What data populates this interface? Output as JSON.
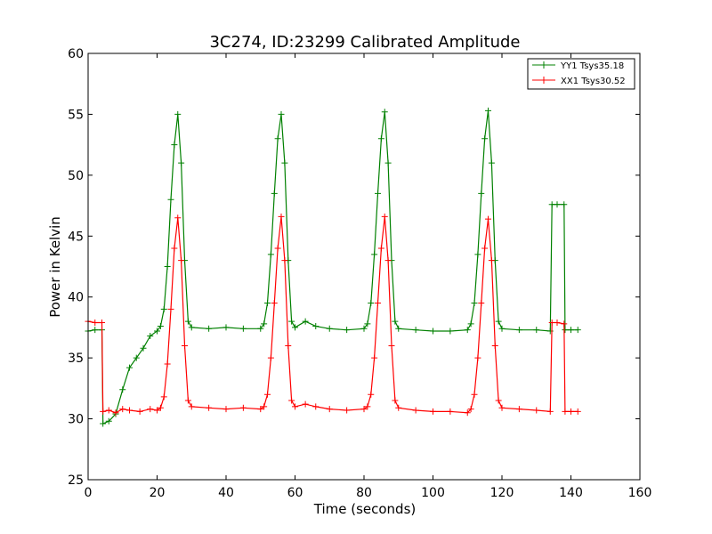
{
  "chart_data": {
    "type": "line",
    "title": "3C274, ID:23299 Calibrated Amplitude",
    "xlabel": "Time (seconds)",
    "ylabel": "Power in Kelvin",
    "xlim": [
      0,
      160
    ],
    "ylim": [
      25,
      60
    ],
    "xticks": [
      0,
      20,
      40,
      60,
      80,
      100,
      120,
      140,
      160
    ],
    "yticks": [
      25,
      30,
      35,
      40,
      45,
      50,
      55,
      60
    ],
    "legend_position": "top-right",
    "grid": false,
    "series": [
      {
        "name": "YY1 Tsys35.18",
        "color": "#008000",
        "marker": "plus",
        "points": [
          [
            0,
            37.2
          ],
          [
            2,
            37.3
          ],
          [
            4,
            37.3
          ],
          [
            4.3,
            29.6
          ],
          [
            6,
            29.8
          ],
          [
            8,
            30.4
          ],
          [
            10,
            32.4
          ],
          [
            12,
            34.2
          ],
          [
            14,
            35.0
          ],
          [
            16,
            35.8
          ],
          [
            18,
            36.8
          ],
          [
            20,
            37.2
          ],
          [
            21,
            37.6
          ],
          [
            22,
            39.0
          ],
          [
            23,
            42.5
          ],
          [
            24,
            48.0
          ],
          [
            25,
            52.5
          ],
          [
            26,
            55.0
          ],
          [
            27,
            51.0
          ],
          [
            28,
            43.0
          ],
          [
            29,
            38.0
          ],
          [
            30,
            37.5
          ],
          [
            35,
            37.4
          ],
          [
            40,
            37.5
          ],
          [
            45,
            37.4
          ],
          [
            50,
            37.4
          ],
          [
            51,
            37.8
          ],
          [
            52,
            39.5
          ],
          [
            53,
            43.5
          ],
          [
            54,
            48.5
          ],
          [
            55,
            53.0
          ],
          [
            56,
            55.0
          ],
          [
            57,
            51.0
          ],
          [
            58,
            43.0
          ],
          [
            59,
            38.0
          ],
          [
            60,
            37.5
          ],
          [
            63,
            38.0
          ],
          [
            66,
            37.6
          ],
          [
            70,
            37.4
          ],
          [
            75,
            37.3
          ],
          [
            80,
            37.4
          ],
          [
            81,
            37.8
          ],
          [
            82,
            39.5
          ],
          [
            83,
            43.5
          ],
          [
            84,
            48.5
          ],
          [
            85,
            53.0
          ],
          [
            86,
            55.2
          ],
          [
            87,
            51.0
          ],
          [
            88,
            43.0
          ],
          [
            89,
            38.0
          ],
          [
            90,
            37.4
          ],
          [
            95,
            37.3
          ],
          [
            100,
            37.2
          ],
          [
            105,
            37.2
          ],
          [
            110,
            37.3
          ],
          [
            111,
            37.8
          ],
          [
            112,
            39.5
          ],
          [
            113,
            43.5
          ],
          [
            114,
            48.5
          ],
          [
            115,
            53.0
          ],
          [
            116,
            55.3
          ],
          [
            117,
            51.0
          ],
          [
            118,
            43.0
          ],
          [
            119,
            38.0
          ],
          [
            120,
            37.4
          ],
          [
            125,
            37.3
          ],
          [
            130,
            37.3
          ],
          [
            134,
            37.2
          ],
          [
            134.5,
            47.6
          ],
          [
            136,
            47.6
          ],
          [
            138,
            47.6
          ],
          [
            138.3,
            37.3
          ],
          [
            140,
            37.3
          ],
          [
            142,
            37.3
          ]
        ]
      },
      {
        "name": "XX1 Tsys30.52",
        "color": "#ff0000",
        "marker": "plus",
        "points": [
          [
            0,
            38.0
          ],
          [
            2,
            37.9
          ],
          [
            4,
            37.9
          ],
          [
            4.3,
            30.6
          ],
          [
            6,
            30.7
          ],
          [
            8,
            30.5
          ],
          [
            10,
            30.8
          ],
          [
            12,
            30.7
          ],
          [
            15,
            30.6
          ],
          [
            18,
            30.8
          ],
          [
            20,
            30.7
          ],
          [
            21,
            30.9
          ],
          [
            22,
            31.8
          ],
          [
            23,
            34.5
          ],
          [
            24,
            39.0
          ],
          [
            25,
            44.0
          ],
          [
            26,
            46.5
          ],
          [
            27,
            43.0
          ],
          [
            28,
            36.0
          ],
          [
            29,
            31.5
          ],
          [
            30,
            31.0
          ],
          [
            35,
            30.9
          ],
          [
            40,
            30.8
          ],
          [
            45,
            30.9
          ],
          [
            50,
            30.8
          ],
          [
            51,
            31.0
          ],
          [
            52,
            32.0
          ],
          [
            53,
            35.0
          ],
          [
            54,
            39.5
          ],
          [
            55,
            44.0
          ],
          [
            56,
            46.6
          ],
          [
            57,
            43.0
          ],
          [
            58,
            36.0
          ],
          [
            59,
            31.5
          ],
          [
            60,
            31.0
          ],
          [
            63,
            31.2
          ],
          [
            66,
            31.0
          ],
          [
            70,
            30.8
          ],
          [
            75,
            30.7
          ],
          [
            80,
            30.8
          ],
          [
            81,
            31.0
          ],
          [
            82,
            32.0
          ],
          [
            83,
            35.0
          ],
          [
            84,
            39.5
          ],
          [
            85,
            44.0
          ],
          [
            86,
            46.6
          ],
          [
            87,
            43.0
          ],
          [
            88,
            36.0
          ],
          [
            89,
            31.5
          ],
          [
            90,
            30.9
          ],
          [
            95,
            30.7
          ],
          [
            100,
            30.6
          ],
          [
            105,
            30.6
          ],
          [
            110,
            30.5
          ],
          [
            111,
            30.8
          ],
          [
            112,
            32.0
          ],
          [
            113,
            35.0
          ],
          [
            114,
            39.5
          ],
          [
            115,
            44.0
          ],
          [
            116,
            46.4
          ],
          [
            117,
            43.0
          ],
          [
            118,
            36.0
          ],
          [
            119,
            31.5
          ],
          [
            120,
            30.9
          ],
          [
            125,
            30.8
          ],
          [
            130,
            30.7
          ],
          [
            134,
            30.6
          ],
          [
            134.5,
            37.9
          ],
          [
            136,
            37.9
          ],
          [
            138,
            37.8
          ],
          [
            138.3,
            30.6
          ],
          [
            140,
            30.6
          ],
          [
            142,
            30.6
          ]
        ]
      }
    ]
  }
}
